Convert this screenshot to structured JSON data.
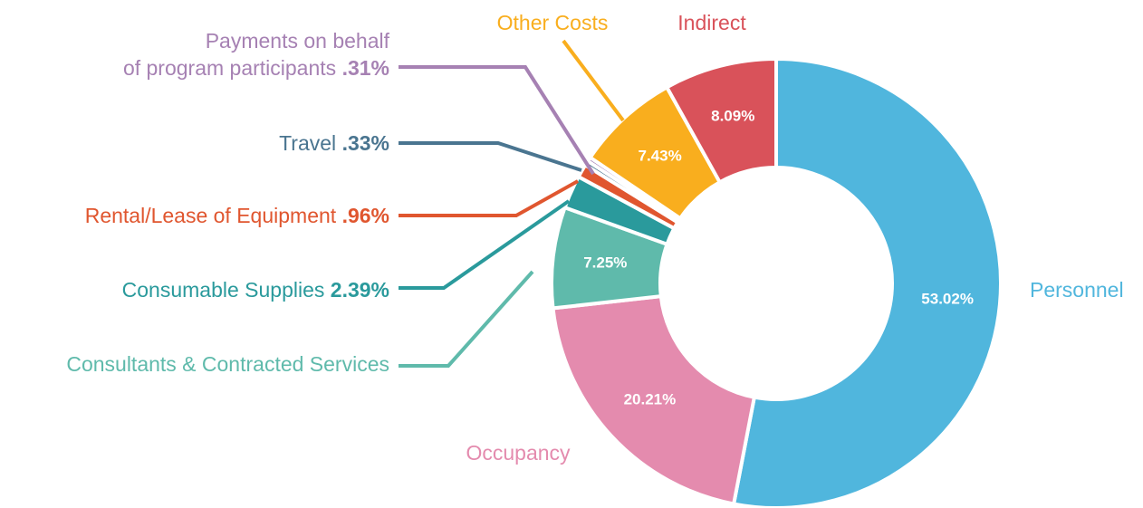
{
  "chart_data": {
    "type": "pie",
    "categories": [
      "Personnel",
      "Occupancy",
      "Consultants & Contracted Services",
      "Consumable Supplies",
      "Rental/Lease of Equipment",
      "Travel",
      "Payments on behalf\nof program participants",
      "Other Costs",
      "Indirect"
    ],
    "values": [
      53.02,
      20.21,
      7.25,
      2.39,
      0.96,
      0.33,
      0.31,
      7.43,
      8.09
    ],
    "value_labels": [
      "53.02%",
      "20.21%",
      "7.25%",
      "2.39%",
      ".96%",
      ".33%",
      ".31%",
      "7.43%",
      "8.09%"
    ],
    "colors": [
      "#50b6dd",
      "#e48bae",
      "#5fbaab",
      "#2a9a9c",
      "#e0562f",
      "#4a7590",
      "#a681b3",
      "#f9ae1e",
      "#d9525a"
    ]
  }
}
